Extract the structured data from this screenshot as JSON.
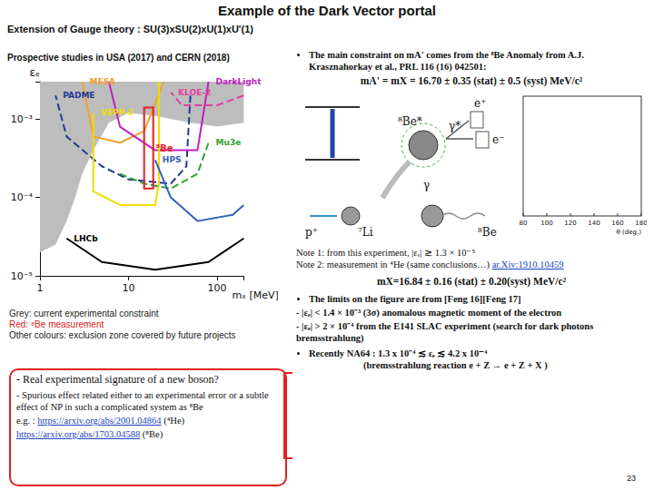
{
  "title": "Example of the Dark Vector portal",
  "subtitle": "Extension of Gauge theory : SU(3)xSU(2)xU(1)xU'(1)",
  "prospective": "Prospective studies in USA (2017) and CERN (2018)",
  "chart_data": {
    "type": "line",
    "log": true,
    "grid": false,
    "x_label": "mₓ [MeV]",
    "y_label": "εₑ",
    "xlim": [
      1,
      200
    ],
    "ylim": [
      1e-05,
      0.003
    ],
    "xticks": [
      1,
      10,
      100
    ],
    "yticks": [
      {
        "value": 1e-05,
        "label": "10⁻⁵"
      },
      {
        "value": 0.0001,
        "label": "10⁻⁴"
      },
      {
        "value": 0.001,
        "label": "10⁻³"
      }
    ],
    "series": [
      {
        "type": "area",
        "color": "#bdbdbd",
        "x": [
          1,
          200,
          200,
          100,
          50,
          20,
          10,
          6,
          4,
          3,
          2.5,
          2,
          1.5,
          1
        ],
        "y": [
          0.003,
          0.003,
          0.0009,
          0.0008,
          0.0009,
          0.0011,
          0.0012,
          0.0009,
          0.0004,
          0.0002,
          0.0001,
          5e-05,
          2.5e-05,
          2e-05
        ]
      },
      {
        "name": "PADME",
        "color": "#1f3a93",
        "line_style": "dashed",
        "x": [
          50,
          45,
          30,
          10,
          5,
          2,
          1.5
        ],
        "y": [
          0.002,
          0.00025,
          0.00015,
          0.00017,
          0.00025,
          0.0006,
          0.002
        ]
      },
      {
        "name": "MESA",
        "color": "#f0a030",
        "line_style": "solid",
        "x": [
          25,
          15,
          8,
          4,
          3
        ],
        "y": [
          0.003,
          0.0007,
          0.0005,
          0.0006,
          0.003
        ]
      },
      {
        "name": "DarkLight",
        "color": "#c020c0",
        "line_style": "solid",
        "x": [
          6,
          8,
          20,
          60,
          80
        ],
        "y": [
          0.003,
          0.0008,
          0.0004,
          0.0004,
          0.003
        ]
      },
      {
        "name": "KLOE-2",
        "color": "#e040a0",
        "line_style": "dashed",
        "x": [
          200,
          100,
          40,
          30
        ],
        "y": [
          0.002,
          0.0015,
          0.0015,
          0.0022
        ]
      },
      {
        "name": "VEPP-3",
        "color": "#f2dc00",
        "line_style": "solid",
        "x": [
          22,
          22,
          20,
          8,
          4,
          4
        ],
        "y": [
          0.003,
          0.00015,
          8e-05,
          8e-05,
          0.00012,
          0.0012
        ]
      },
      {
        "name": "Mu3e",
        "color": "#30a030",
        "line_style": "dashed",
        "x": [
          8,
          15,
          30,
          60,
          80
        ],
        "y": [
          0.0002,
          0.00015,
          0.00013,
          0.0002,
          0.0005
        ]
      },
      {
        "name": "HPS",
        "color": "#3060c0",
        "line_style": "solid",
        "x": [
          200,
          150,
          60,
          30,
          20
        ],
        "y": [
          8e-05,
          6e-05,
          5e-05,
          0.0001,
          0.0003
        ]
      },
      {
        "name": "LHCb",
        "color": "#000000",
        "line_style": "solid",
        "x": [
          200,
          80,
          20,
          5,
          2
        ],
        "y": [
          3e-05,
          1.5e-05,
          1.2e-05,
          1.5e-05,
          3e-05
        ]
      },
      {
        "name": "⁸Be",
        "type": "polygon",
        "color": "#e02020",
        "x": [
          15,
          19,
          19,
          15
        ],
        "y": [
          0.0014,
          0.0014,
          0.00013,
          0.00013
        ]
      }
    ]
  },
  "chart_notes": [
    {
      "text": "Grey: current experimental constraint",
      "color": "#222222"
    },
    {
      "text": "Red: ⁸Be measurement",
      "color": "#e02020"
    },
    {
      "text": "Other colours: exclusion zone covered by future projects",
      "color": "#222222"
    }
  ],
  "box": {
    "color": "#e02020",
    "lines": [
      [
        {
          "text": "- Real experimental signature of a new boson?"
        }
      ],
      [
        {
          "text": "- Spurious effect related either to an experimental error or a subtle effect of NP in such a complicated system as ⁸Be"
        }
      ],
      [
        {
          "text": "e.g. : "
        },
        {
          "text": "https://arxiv.org/abs/2001.04864",
          "link": true
        },
        {
          "text": " (⁴He)"
        }
      ],
      [
        {
          "text": "https://arxiv.org/abs/1703.04588",
          "link": true
        },
        {
          "text": " (⁸Be)"
        }
      ]
    ]
  },
  "right": {
    "main_constraint": "The main constraint on mA' comes from the ⁸Be Anomaly from A.J. Krasznahorkay et al., PRL 116 (16) 042501:",
    "formula1": "mA' = mX = 16.70 ± 0.35 (stat) ± 0.5 (syst) MeV/c²",
    "diagram_labels": [
      "⁸Be*",
      "γ*",
      "e⁺",
      "e⁻",
      "p⁺",
      "⁷Li",
      "γ",
      "⁸Be"
    ],
    "plot_xlabel": "θ (deg.)",
    "plot_xticks": [
      80,
      100,
      120,
      140,
      160,
      180
    ],
    "note1": "Note 1: from this experiment, |εₑ| ≳ 1.3 × 10⁻⁵",
    "note2": "Note 2: measurement in ⁴He (same conclusions…)",
    "note2_link": "ar.Xiv:1910.10459",
    "formula2": "mX=16.84 ± 0.16 (stat) ± 0.20(syst) MeV/c²",
    "limits_intro": "The limits on the figure are from [Feng 16][Feng 17]",
    "limits_items": [
      "- |εₑ| < 1.4 × 10⁻³ (3σ) anomalous magnetic moment of the electron",
      "- |εₑ| > 2 × 10⁻⁴  from the E141 SLAC experiment (search for dark photons bremsstrahlung)"
    ],
    "na64": [
      "Recently NA64 : 1.3 x 10⁻⁴ ≲ εₑ ≲ 4.2 x 10⁻⁴",
      "(bremsstrahlung reaction e + Z → e + Z + X )"
    ]
  },
  "page_number": "23"
}
